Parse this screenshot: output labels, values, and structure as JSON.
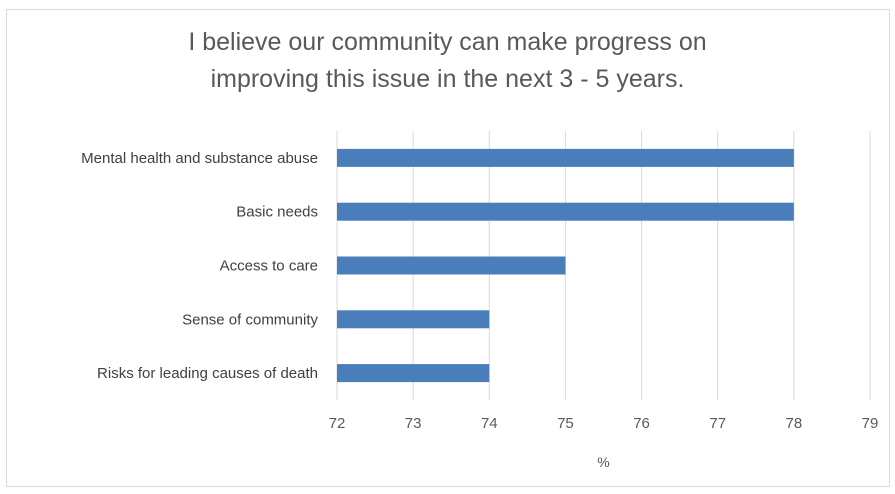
{
  "chart_data": {
    "type": "bar",
    "orientation": "horizontal",
    "title": "I believe our community can make progress on improving this issue in the next 3 - 5 years.",
    "title_lines": [
      "I believe our community can make progress on",
      "improving this issue in the next 3 - 5 years."
    ],
    "categories": [
      "Mental health and substance abuse",
      "Basic needs",
      "Access to care",
      "Sense  of community",
      "Risks for leading causes of death"
    ],
    "values": [
      78,
      78,
      75,
      74,
      74
    ],
    "xlabel": "%",
    "ylabel": "",
    "xlim": [
      72,
      79
    ],
    "xticks": [
      "72",
      "73",
      "74",
      "75",
      "76",
      "77",
      "78",
      "79"
    ],
    "grid": true,
    "legend": "none",
    "colors": {
      "bar": "#4a7ebb",
      "grid": "#d9d9d9"
    }
  }
}
